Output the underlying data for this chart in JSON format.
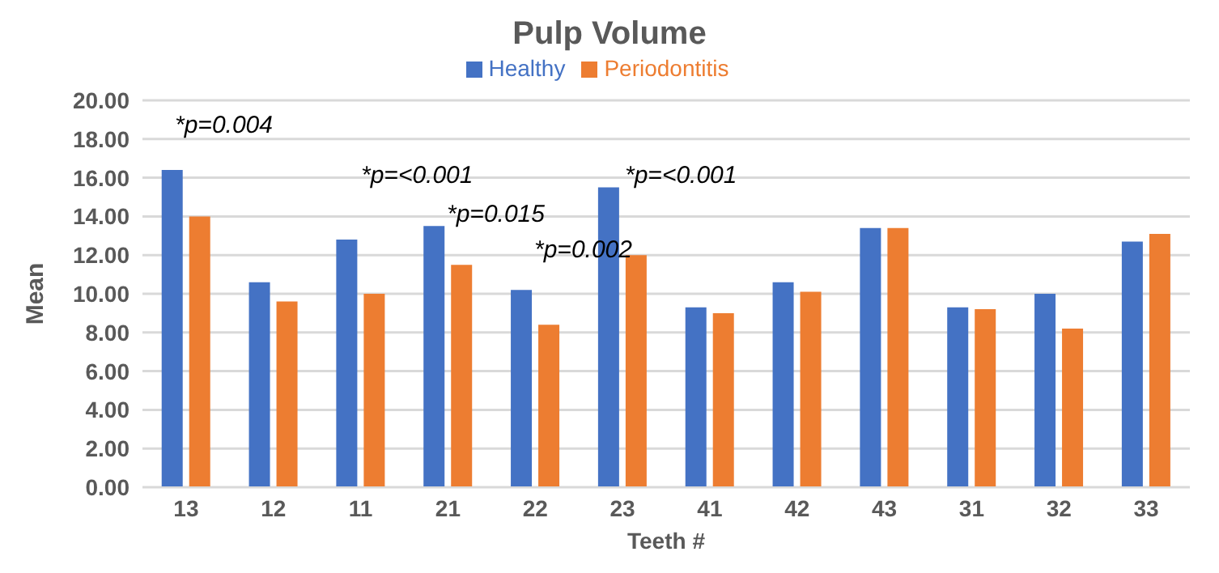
{
  "chart_data": {
    "type": "bar",
    "title": "Pulp Volume",
    "xlabel": "Teeth #",
    "ylabel": "Mean",
    "categories": [
      "13",
      "12",
      "11",
      "21",
      "22",
      "23",
      "41",
      "42",
      "43",
      "31",
      "32",
      "33"
    ],
    "series": [
      {
        "name": "Healthy",
        "color": "#4472c4",
        "values": [
          16.4,
          10.6,
          12.8,
          13.5,
          10.2,
          15.5,
          9.3,
          10.6,
          13.4,
          9.3,
          10.0,
          12.7
        ]
      },
      {
        "name": "Periodontitis",
        "color": "#ed7d31",
        "values": [
          14.0,
          9.6,
          10.0,
          11.5,
          8.4,
          12.0,
          9.0,
          10.1,
          13.4,
          9.2,
          8.2,
          13.1
        ]
      }
    ],
    "ylim": [
      0,
      20
    ],
    "yticks": [
      {
        "value": 0,
        "label": "0.00"
      },
      {
        "value": 2,
        "label": "2.00"
      },
      {
        "value": 4,
        "label": "4.00"
      },
      {
        "value": 6,
        "label": "6.00"
      },
      {
        "value": 8,
        "label": "8.00"
      },
      {
        "value": 10,
        "label": "10.00"
      },
      {
        "value": 12,
        "label": "12.00"
      },
      {
        "value": 14,
        "label": "14.00"
      },
      {
        "value": 16,
        "label": "16.00"
      },
      {
        "value": 18,
        "label": "18.00"
      },
      {
        "value": 20,
        "label": "20.00"
      }
    ],
    "grid": "y",
    "legend": "top",
    "annotations": [
      "*p=0.004",
      "*p=<0.001",
      "*p=0.015",
      "*p=0.002",
      "*p=<0.001"
    ]
  }
}
